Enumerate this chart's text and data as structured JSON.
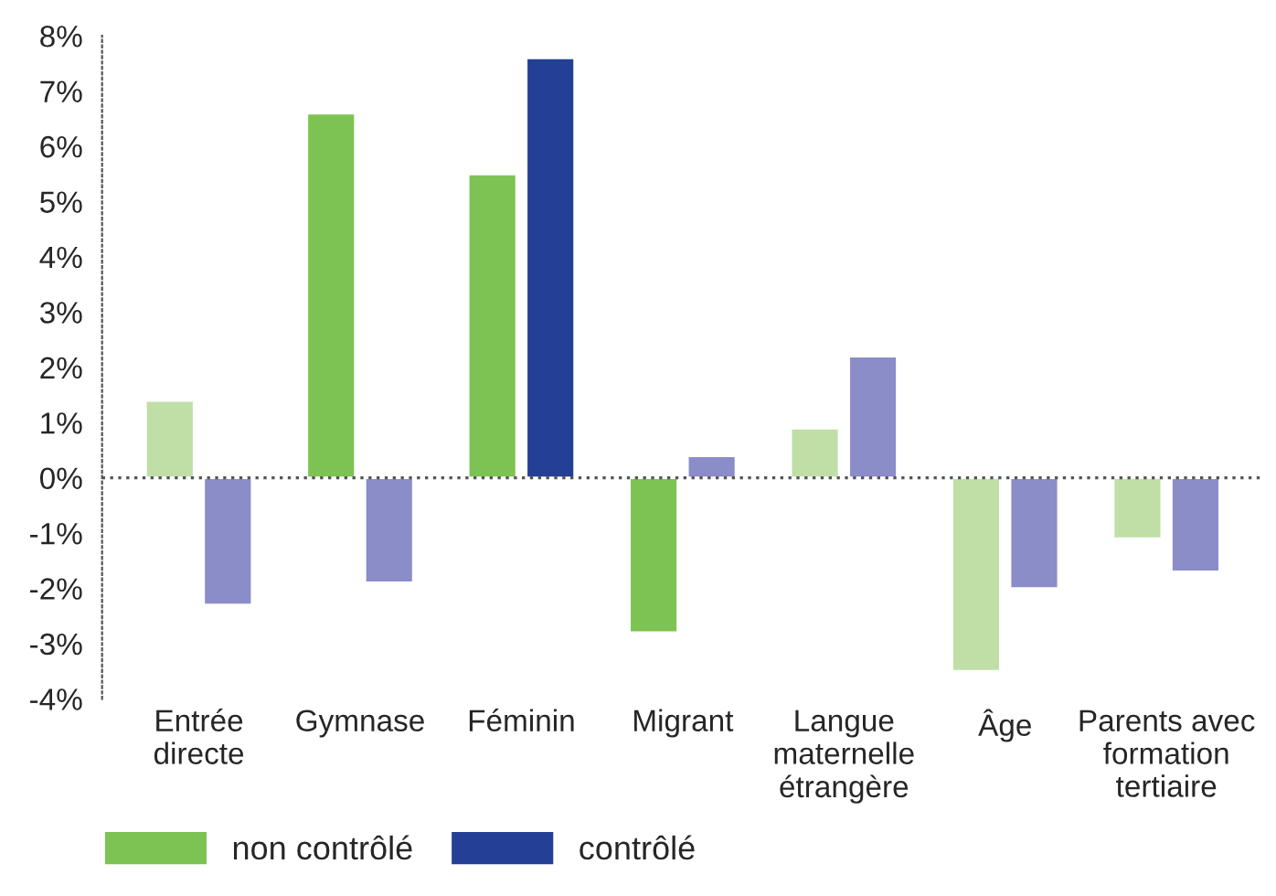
{
  "chart_data": {
    "type": "bar",
    "categories": [
      "Entrée\ndirecte",
      "Gymnase",
      "Féminin",
      "Migrant",
      "Langue\nmaternelle\nétrangère",
      "Âge",
      "Parents avec\nformation\ntertiaire"
    ],
    "series": [
      {
        "name": "non contrôlé",
        "color": "#7dc353",
        "colors": [
          "#bfdfa6",
          "#7dc353",
          "#7dc353",
          "#7dc353",
          "#bfdfa6",
          "#bfdfa6",
          "#bfdfa6"
        ],
        "values": [
          1.4,
          6.6,
          5.5,
          -2.8,
          0.9,
          -3.5,
          -1.1
        ]
      },
      {
        "name": "contrôlé",
        "color": "#233f96",
        "colors": [
          "#8b8dc8",
          "#8b8dc8",
          "#233f96",
          "#8b8dc8",
          "#8b8dc8",
          "#8b8dc8",
          "#8b8dc8"
        ],
        "values": [
          -2.3,
          -1.9,
          7.6,
          0.4,
          2.2,
          -2.0,
          -1.7
        ]
      }
    ],
    "ylim": [
      -4,
      8
    ],
    "yticks": [
      {
        "value": -4,
        "label": "-4%"
      },
      {
        "value": -3,
        "label": "-3%"
      },
      {
        "value": -2,
        "label": "-2%"
      },
      {
        "value": -1,
        "label": "-1%"
      },
      {
        "value": 0,
        "label": "0%"
      },
      {
        "value": 1,
        "label": "1%"
      },
      {
        "value": 2,
        "label": "2%"
      },
      {
        "value": 3,
        "label": "3%"
      },
      {
        "value": 4,
        "label": "4%"
      },
      {
        "value": 5,
        "label": "5%"
      },
      {
        "value": 6,
        "label": "6%"
      },
      {
        "value": 7,
        "label": "7%"
      },
      {
        "value": 8,
        "label": "8%"
      }
    ],
    "ref_lines": [
      {
        "axis": "y",
        "value": 0,
        "color": "#555555",
        "line_style": "dotted"
      }
    ],
    "grid": false,
    "legend": "bottom"
  }
}
